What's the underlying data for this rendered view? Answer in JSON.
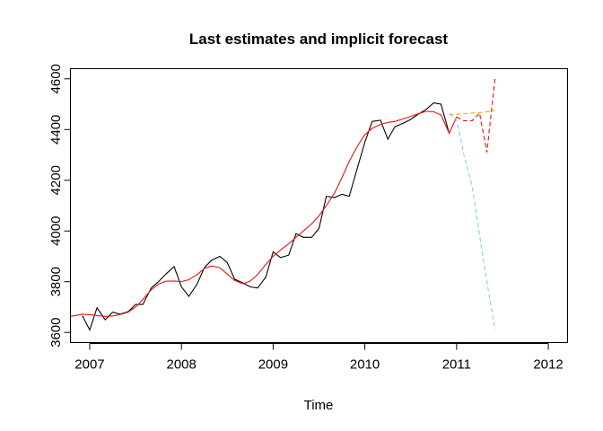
{
  "chart_data": {
    "type": "line",
    "title": "Last estimates and implicit forecast",
    "xlabel": "Time",
    "ylabel": "",
    "xlim": [
      2006.79,
      2012.21
    ],
    "ylim": [
      3560,
      4640
    ],
    "x_ticks": [
      2007,
      2008,
      2009,
      2010,
      2011,
      2012
    ],
    "x_tick_labels": [
      "2007",
      "2008",
      "2009",
      "2010",
      "2011",
      "2012"
    ],
    "y_ticks": [
      3600,
      3800,
      4000,
      4200,
      4400,
      4600
    ],
    "y_tick_labels": [
      "3600",
      "3800",
      "4000",
      "4200",
      "4400",
      "4600"
    ],
    "grid": false,
    "legend": "none",
    "series": [
      {
        "color": "#000000",
        "dash": "solid",
        "x": [
          2006.92,
          2007.0,
          2007.08,
          2007.17,
          2007.25,
          2007.33,
          2007.42,
          2007.5,
          2007.58,
          2007.67,
          2007.75,
          2007.83,
          2007.92,
          2008.0,
          2008.08,
          2008.17,
          2008.25,
          2008.33,
          2008.42,
          2008.5,
          2008.58,
          2008.67,
          2008.75,
          2008.83,
          2008.92,
          2009.0,
          2009.08,
          2009.17,
          2009.25,
          2009.33,
          2009.42,
          2009.5,
          2009.58,
          2009.67,
          2009.75,
          2009.83,
          2009.92,
          2010.0,
          2010.08,
          2010.17,
          2010.25,
          2010.33,
          2010.42,
          2010.5,
          2010.58,
          2010.67,
          2010.75,
          2010.83,
          2010.92
        ],
        "values": [
          3665,
          3610,
          3697,
          3650,
          3680,
          3672,
          3682,
          3710,
          3710,
          3775,
          3800,
          3830,
          3860,
          3780,
          3742,
          3790,
          3855,
          3885,
          3900,
          3875,
          3810,
          3795,
          3780,
          3775,
          3818,
          3918,
          3895,
          3905,
          3990,
          3975,
          3975,
          4010,
          4137,
          4132,
          4145,
          4137,
          4250,
          4350,
          4432,
          4437,
          4362,
          4412,
          4425,
          4440,
          4460,
          4480,
          4505,
          4500,
          4385
        ]
      },
      {
        "color": "#ee1111",
        "dash": "solid",
        "x": [
          2006.79,
          2006.92,
          2007.0,
          2007.08,
          2007.17,
          2007.25,
          2007.33,
          2007.42,
          2007.5,
          2007.58,
          2007.67,
          2007.75,
          2007.83,
          2007.92,
          2008.0,
          2008.08,
          2008.17,
          2008.25,
          2008.33,
          2008.42,
          2008.5,
          2008.58,
          2008.67,
          2008.75,
          2008.83,
          2008.92,
          2009.0,
          2009.08,
          2009.17,
          2009.25,
          2009.33,
          2009.42,
          2009.5,
          2009.58,
          2009.67,
          2009.75,
          2009.83,
          2009.92,
          2010.0,
          2010.08,
          2010.17,
          2010.25,
          2010.33,
          2010.42,
          2010.5,
          2010.58,
          2010.67,
          2010.75,
          2010.83,
          2010.92,
          2011.0
        ],
        "values": [
          3663,
          3672,
          3670,
          3667,
          3663,
          3665,
          3670,
          3680,
          3700,
          3730,
          3768,
          3790,
          3802,
          3803,
          3800,
          3808,
          3828,
          3852,
          3862,
          3855,
          3830,
          3805,
          3792,
          3802,
          3828,
          3868,
          3900,
          3925,
          3950,
          3975,
          4000,
          4028,
          4060,
          4100,
          4150,
          4210,
          4275,
          4335,
          4380,
          4405,
          4420,
          4428,
          4432,
          4442,
          4452,
          4462,
          4472,
          4470,
          4458,
          4385,
          4450
        ]
      },
      {
        "color": "#ee1111",
        "dash": "dashed",
        "x": [
          2011.0,
          2011.08,
          2011.17,
          2011.25,
          2011.33,
          2011.42
        ],
        "values": [
          4450,
          4435,
          4435,
          4465,
          4310,
          4605
        ]
      },
      {
        "color": "#ffa500",
        "dash": "dashed",
        "x": [
          2010.92,
          2011.0,
          2011.08,
          2011.17,
          2011.25,
          2011.33,
          2011.42
        ],
        "values": [
          4460,
          4460,
          4463,
          4465,
          4467,
          4470,
          4475
        ]
      },
      {
        "color": "#87ceeb",
        "dash": "dashed",
        "x": [
          2010.92,
          2011.0,
          2011.08,
          2011.17,
          2011.25,
          2011.33,
          2011.42
        ],
        "values": [
          4462,
          4440,
          4300,
          4175,
          3985,
          3800,
          3610
        ]
      }
    ]
  }
}
